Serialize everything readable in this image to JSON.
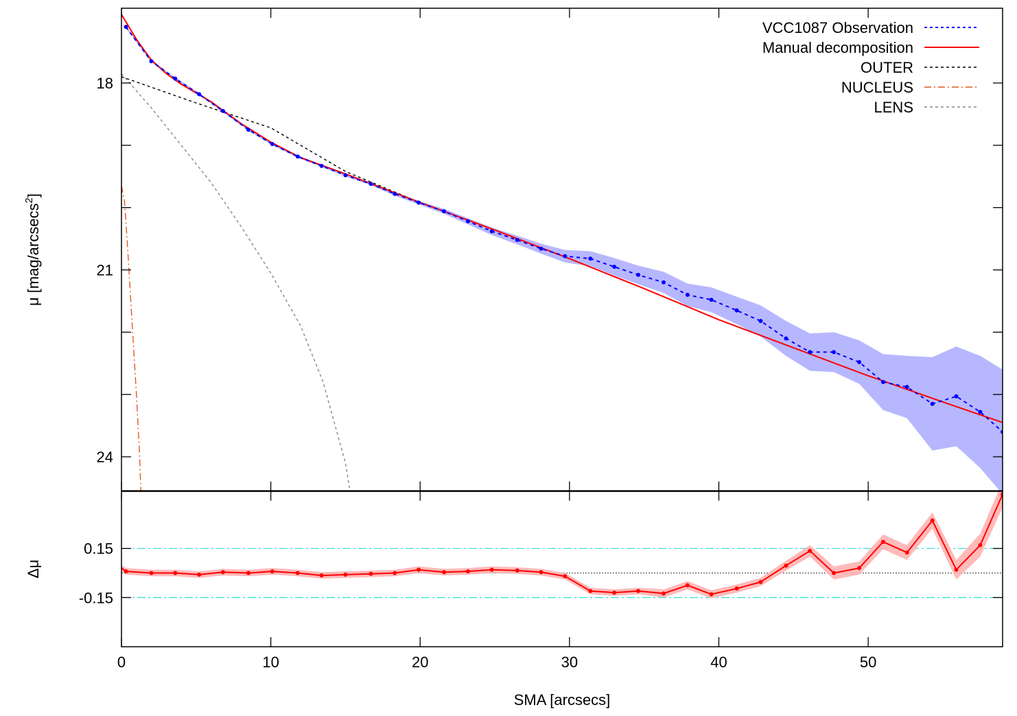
{
  "chart_data": [
    {
      "type": "line",
      "panel": "top",
      "ylabel": "μ [mag/arcsecs",
      "ylabel_sup": "2",
      "ylabel_suffix": "]",
      "xlim": [
        0,
        59
      ],
      "ylim": [
        24.55,
        16.8
      ],
      "y_inverted": true,
      "yticks": [
        18,
        19,
        20,
        21,
        22,
        23,
        24
      ],
      "ytick_labels": [
        "18",
        "",
        "",
        "21",
        "",
        "",
        "24"
      ],
      "grid": false,
      "legend_position": "top-right",
      "legend": [
        {
          "label": "VCC1087 Observation",
          "color": "#0000ff",
          "dash": "4,4"
        },
        {
          "label": "Manual decomposition",
          "color": "#ff0000",
          "dash": ""
        },
        {
          "label": "OUTER",
          "color": "#000000",
          "dash": "4,4"
        },
        {
          "label": "NUCLEUS",
          "color": "#e05a1e",
          "dash": "10,4,2,4"
        },
        {
          "label": "LENS",
          "color": "#888888",
          "dash": "4,4"
        }
      ],
      "series": [
        {
          "name": "VCC1087 Observation",
          "color": "#0000ff",
          "x": [
            0.3,
            2.0,
            3.6,
            5.2,
            6.8,
            8.5,
            10.1,
            11.8,
            13.4,
            15.0,
            16.7,
            18.3,
            19.9,
            21.6,
            23.2,
            24.8,
            26.5,
            28.1,
            29.7,
            31.4,
            33.0,
            34.6,
            36.3,
            37.9,
            39.5,
            41.2,
            42.8,
            44.5,
            46.1,
            47.7,
            49.4,
            51.0,
            52.6,
            54.3,
            55.9,
            57.5,
            59.0
          ],
          "y": [
            17.1,
            17.65,
            17.93,
            18.18,
            18.45,
            18.75,
            18.98,
            19.18,
            19.33,
            19.48,
            19.62,
            19.78,
            19.92,
            20.06,
            20.22,
            20.38,
            20.52,
            20.66,
            20.78,
            20.82,
            20.95,
            21.08,
            21.2,
            21.4,
            21.48,
            21.65,
            21.82,
            22.1,
            22.32,
            22.32,
            22.48,
            22.8,
            22.88,
            23.15,
            23.03,
            23.28,
            23.6
          ],
          "err": [
            0.02,
            0.02,
            0.02,
            0.02,
            0.02,
            0.02,
            0.02,
            0.02,
            0.02,
            0.02,
            0.02,
            0.03,
            0.03,
            0.04,
            0.05,
            0.06,
            0.07,
            0.08,
            0.1,
            0.12,
            0.14,
            0.15,
            0.17,
            0.18,
            0.2,
            0.22,
            0.25,
            0.28,
            0.3,
            0.32,
            0.35,
            0.45,
            0.5,
            0.75,
            0.8,
            0.9,
            1.0
          ]
        },
        {
          "name": "Manual decomposition",
          "color": "#ff0000",
          "x": [
            0,
            1,
            2,
            3,
            4,
            5,
            6,
            8,
            10,
            12,
            15,
            20,
            25,
            30,
            35,
            40,
            45,
            50,
            55,
            59
          ],
          "y": [
            16.9,
            17.3,
            17.63,
            17.85,
            18.02,
            18.16,
            18.3,
            18.65,
            18.95,
            19.2,
            19.46,
            19.92,
            20.36,
            20.82,
            21.3,
            21.8,
            22.25,
            22.7,
            23.12,
            23.45
          ]
        },
        {
          "name": "OUTER",
          "color": "#000000",
          "x": [
            0,
            5,
            10,
            15,
            20,
            25,
            30,
            35,
            40,
            45,
            50,
            55,
            59
          ],
          "y": [
            17.9,
            18.32,
            18.72,
            19.42,
            19.92,
            20.36,
            20.82,
            21.3,
            21.8,
            22.25,
            22.7,
            23.12,
            23.45
          ]
        },
        {
          "name": "NUCLEUS",
          "color": "#e05a1e",
          "x": [
            0,
            0.2,
            0.4,
            0.6,
            0.8,
            1.0,
            1.2,
            1.3
          ],
          "y": [
            19.65,
            19.9,
            20.6,
            21.4,
            22.2,
            23.0,
            23.9,
            24.55
          ]
        },
        {
          "name": "LENS",
          "color": "#888888",
          "x": [
            0,
            2,
            4,
            6,
            8,
            10,
            12,
            13.5,
            15,
            15.3
          ],
          "y": [
            17.85,
            18.4,
            19.0,
            19.6,
            20.3,
            21.05,
            21.9,
            22.8,
            24.1,
            24.55
          ]
        }
      ]
    },
    {
      "type": "line",
      "panel": "bottom",
      "xlabel": "SMA [arcsecs]",
      "ylabel": "Δμ",
      "xlim": [
        0,
        59
      ],
      "ylim": [
        -0.45,
        0.5
      ],
      "xticks": [
        0,
        10,
        20,
        30,
        40,
        50
      ],
      "xtick_labels": [
        "0",
        "10",
        "20",
        "30",
        "40",
        "50"
      ],
      "yticks": [
        0.15,
        -0.15
      ],
      "ytick_labels": [
        "0.15",
        "-0.15"
      ],
      "reference_lines": [
        {
          "y": 0.15,
          "color": "#40e0d0",
          "dash": "12,4,3,4"
        },
        {
          "y": -0.15,
          "color": "#40e0d0",
          "dash": "12,4,3,4"
        },
        {
          "y": 0.0,
          "color": "#555555",
          "dash": "2,2"
        }
      ],
      "series": [
        {
          "name": "residual",
          "color": "#ff0000",
          "x": [
            0,
            0.3,
            2.0,
            3.6,
            5.2,
            6.8,
            8.5,
            10.1,
            11.8,
            13.4,
            15.0,
            16.7,
            18.3,
            19.9,
            21.6,
            23.2,
            24.8,
            26.5,
            28.1,
            29.7,
            31.4,
            33.0,
            34.6,
            36.3,
            37.9,
            39.5,
            41.2,
            42.8,
            44.5,
            46.1,
            47.7,
            49.4,
            51.0,
            52.6,
            54.3,
            55.9,
            57.5,
            59.0
          ],
          "y": [
            0.03,
            0.01,
            0.0,
            0.0,
            -0.01,
            0.005,
            0.0,
            0.01,
            0.0,
            -0.015,
            -0.01,
            -0.005,
            0.0,
            0.02,
            0.005,
            0.01,
            0.02,
            0.015,
            0.005,
            -0.02,
            -0.11,
            -0.12,
            -0.11,
            -0.125,
            -0.075,
            -0.13,
            -0.095,
            -0.055,
            0.045,
            0.135,
            0.0,
            0.03,
            0.19,
            0.125,
            0.32,
            0.02,
            0.17,
            0.48
          ],
          "err": [
            0.02,
            0.02,
            0.02,
            0.02,
            0.02,
            0.02,
            0.02,
            0.02,
            0.02,
            0.02,
            0.02,
            0.02,
            0.02,
            0.02,
            0.02,
            0.02,
            0.02,
            0.02,
            0.02,
            0.02,
            0.02,
            0.02,
            0.02,
            0.025,
            0.025,
            0.025,
            0.025,
            0.025,
            0.03,
            0.035,
            0.04,
            0.04,
            0.045,
            0.045,
            0.05,
            0.06,
            0.07,
            0.08
          ]
        }
      ]
    }
  ]
}
